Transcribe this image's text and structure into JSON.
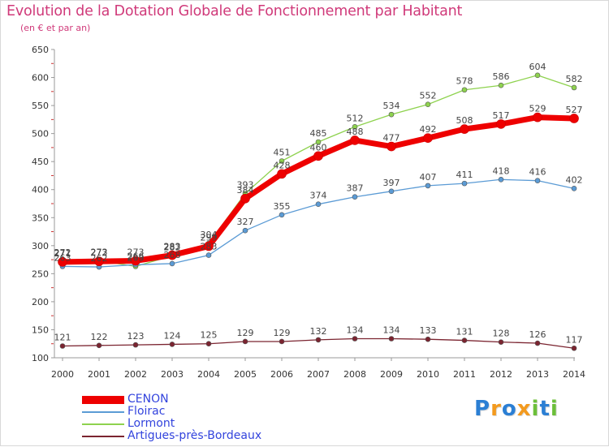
{
  "chart_data": {
    "type": "line",
    "title": "Evolution de la Dotation Globale de Fonctionnement par Habitant",
    "subtitle": "(en € et par an)",
    "ylim": [
      100,
      650
    ],
    "yticks": [
      100,
      150,
      200,
      250,
      300,
      350,
      400,
      450,
      500,
      550,
      600,
      650
    ],
    "x": [
      "2000",
      "2001",
      "2002",
      "2003",
      "2004",
      "2005",
      "2006",
      "2007",
      "2008",
      "2009",
      "2010",
      "2011",
      "2012",
      "2013",
      "2014"
    ],
    "grid": false,
    "legend": "bottom-left",
    "series": [
      {
        "name": "Lormont",
        "color": "#8ed24e",
        "values": [
          272,
          273,
          263,
          282,
          304,
          393,
          451,
          485,
          512,
          534,
          552,
          578,
          586,
          604,
          582
        ]
      },
      {
        "name": "Floirac",
        "color": "#5b9bd5",
        "values": [
          263,
          262,
          266,
          268,
          283,
          327,
          355,
          374,
          387,
          397,
          407,
          411,
          418,
          416,
          402
        ]
      },
      {
        "name": "Artigues-près-Bordeaux",
        "color": "#7b2430",
        "values": [
          121,
          122,
          123,
          124,
          125,
          129,
          129,
          132,
          134,
          134,
          133,
          131,
          128,
          126,
          117
        ]
      },
      {
        "name": "CENON",
        "color": "#ee0000",
        "values": [
          271,
          272,
          273,
          283,
          299,
          384,
          428,
          460,
          488,
          477,
          492,
          508,
          517,
          529,
          527
        ]
      }
    ],
    "label_series_order": [
      "Artigues-près-Bordeaux",
      "Floirac",
      "Lormont",
      "CENON"
    ]
  },
  "logo": {
    "letters": [
      {
        "char": "P",
        "color": "#2b7fd4"
      },
      {
        "char": "r",
        "color": "#f39a1e"
      },
      {
        "char": "o",
        "color": "#2b7fd4"
      },
      {
        "char": "x",
        "color": "#f39a1e"
      },
      {
        "char": "i",
        "color": "#6cbf3a"
      },
      {
        "char": "t",
        "color": "#2b7fd4"
      },
      {
        "char": "i",
        "color": "#6cbf3a"
      }
    ]
  }
}
